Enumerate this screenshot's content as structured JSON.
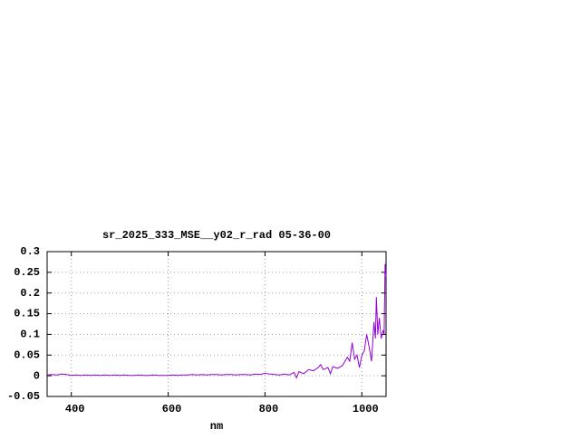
{
  "chart_data": {
    "type": "line",
    "title": "sr_2025_333_MSE__y02_r_rad 05-36-00",
    "x_label": "nm",
    "x": [
      350,
      360,
      370,
      380,
      390,
      400,
      410,
      420,
      430,
      440,
      450,
      460,
      470,
      480,
      490,
      500,
      510,
      520,
      530,
      540,
      550,
      560,
      570,
      580,
      590,
      600,
      610,
      620,
      630,
      640,
      650,
      660,
      670,
      680,
      690,
      700,
      710,
      720,
      730,
      740,
      750,
      760,
      770,
      780,
      790,
      800,
      810,
      820,
      830,
      840,
      850,
      860,
      865,
      870,
      880,
      890,
      900,
      910,
      915,
      920,
      930,
      935,
      940,
      950,
      960,
      970,
      975,
      980,
      985,
      990,
      995,
      1000,
      1005,
      1010,
      1015,
      1020,
      1025,
      1028,
      1030,
      1033,
      1036,
      1040,
      1044,
      1046,
      1048,
      1050
    ],
    "series": [
      {
        "color": "#9400d3",
        "values": [
          0.002,
          0.003,
          0.002,
          0.004,
          0.003,
          0.001,
          0.002,
          0.001,
          0.002,
          0.001,
          0.002,
          0.001,
          0.002,
          0.001,
          0.002,
          0.001,
          0.002,
          0.001,
          0.001,
          0.002,
          0.001,
          0.001,
          0.002,
          0.001,
          0.001,
          0.001,
          0.002,
          0.001,
          0.002,
          0.002,
          0.003,
          0.002,
          0.003,
          0.002,
          0.003,
          0.003,
          0.002,
          0.003,
          0.003,
          0.002,
          0.003,
          0.003,
          0.002,
          0.004,
          0.003,
          0.006,
          0.004,
          0.003,
          0.002,
          0.004,
          0.002,
          0.008,
          -0.005,
          0.01,
          0.005,
          0.015,
          0.012,
          0.02,
          0.027,
          0.015,
          0.02,
          0.005,
          0.022,
          0.018,
          0.025,
          0.045,
          0.035,
          0.08,
          0.04,
          0.05,
          0.02,
          0.05,
          0.06,
          0.1,
          0.07,
          0.035,
          0.13,
          0.09,
          0.19,
          0.1,
          0.14,
          0.09,
          0.11,
          0.1,
          0.27,
          0.24
        ]
      }
    ],
    "xlim": [
      350,
      1050
    ],
    "xticks": [
      400,
      600,
      800,
      1000
    ],
    "ylim": [
      -0.05,
      0.3
    ],
    "yticks": [
      -0.05,
      0,
      0.05,
      0.1,
      0.15,
      0.2,
      0.25,
      0.3
    ],
    "grid": true
  }
}
